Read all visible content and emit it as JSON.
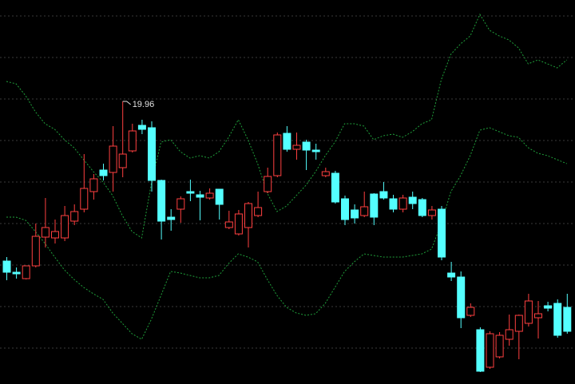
{
  "chart_data": {
    "type": "candlestick",
    "up_color": "#ff4040",
    "down_color": "#54ffff",
    "ylim": [
      16.42,
      21.23
    ],
    "open": [
      17.96,
      17.82,
      17.74,
      17.9,
      18.26,
      18.25,
      18.25,
      18.46,
      18.61,
      18.83,
      19.1,
      19.07,
      19.13,
      19.34,
      19.66,
      19.63,
      18.97,
      18.51,
      18.61,
      18.83,
      18.79,
      18.75,
      18.86,
      18.38,
      18.3,
      18.38,
      18.53,
      18.83,
      19.03,
      19.56,
      19.36,
      19.45,
      19.35,
      19.03,
      19.06,
      18.74,
      18.6,
      18.53,
      18.8,
      18.83,
      18.74,
      18.61,
      18.76,
      18.73,
      18.53,
      18.61,
      17.81,
      17.76,
      17.28,
      17.1,
      16.63,
      16.76,
      16.98,
      17.08,
      17.18,
      17.25,
      17.4,
      17.43,
      17.38
    ],
    "high": [
      18.01,
      17.88,
      17.9,
      18.43,
      18.75,
      18.48,
      18.65,
      18.67,
      19.3,
      19.05,
      19.18,
      19.65,
      19.96,
      19.68,
      19.73,
      19.71,
      18.98,
      18.61,
      18.77,
      18.98,
      18.84,
      18.87,
      18.86,
      18.59,
      18.6,
      18.7,
      18.83,
      19.13,
      19.57,
      19.65,
      19.57,
      19.48,
      19.43,
      19.13,
      19.09,
      18.78,
      18.67,
      18.83,
      18.81,
      18.95,
      18.79,
      18.79,
      18.83,
      18.75,
      18.65,
      18.65,
      17.95,
      17.83,
      17.43,
      17.13,
      17.08,
      17.07,
      17.29,
      17.29,
      17.55,
      17.46,
      17.45,
      17.48,
      17.55
    ],
    "low": [
      17.72,
      17.74,
      17.73,
      17.88,
      18.13,
      18.18,
      18.21,
      18.41,
      18.57,
      18.73,
      18.97,
      18.83,
      19.01,
      19.32,
      19.55,
      18.83,
      18.23,
      18.34,
      18.44,
      18.71,
      18.47,
      18.73,
      18.48,
      18.36,
      18.28,
      18.13,
      18.51,
      18.81,
      19.01,
      19.33,
      19.23,
      19.1,
      19.23,
      19.01,
      18.68,
      18.41,
      18.43,
      18.51,
      18.41,
      18.73,
      18.57,
      18.57,
      18.61,
      18.51,
      18.48,
      17.97,
      17.71,
      17.12,
      17.26,
      16.57,
      16.61,
      16.74,
      16.9,
      16.73,
      17.14,
      16.99,
      17.33,
      17.0,
      17.05
    ],
    "close": [
      17.82,
      17.8,
      17.9,
      18.27,
      18.38,
      18.33,
      18.53,
      18.58,
      18.87,
      18.99,
      19.03,
      19.4,
      19.3,
      19.59,
      19.61,
      18.97,
      18.46,
      18.48,
      18.74,
      18.81,
      18.76,
      18.81,
      18.67,
      18.45,
      18.55,
      18.68,
      18.63,
      19.02,
      19.54,
      19.36,
      19.41,
      19.35,
      19.33,
      19.08,
      18.7,
      18.48,
      18.5,
      18.64,
      18.51,
      18.75,
      18.61,
      18.75,
      18.68,
      18.53,
      18.6,
      18.01,
      17.76,
      17.25,
      17.38,
      16.58,
      17.05,
      17.03,
      17.1,
      17.28,
      17.46,
      17.3,
      17.37,
      17.03,
      17.08
    ],
    "lines": [
      {
        "color": "#1f9e3a",
        "values": [
          20.21,
          20.18,
          20.03,
          19.83,
          19.68,
          19.61,
          19.48,
          19.38,
          19.23,
          19.08,
          18.95,
          18.78,
          18.53,
          18.33,
          18.25,
          18.93,
          19.45,
          19.48,
          19.33,
          19.25,
          19.28,
          19.25,
          19.33,
          19.51,
          19.73,
          19.48,
          19.18,
          18.81,
          18.58,
          18.65,
          18.78,
          18.91,
          19.08,
          19.28,
          19.45,
          19.68,
          19.68,
          19.65,
          19.48,
          19.53,
          19.55,
          19.51,
          19.58,
          19.68,
          19.73,
          20.23,
          20.55,
          20.68,
          20.78,
          21.05,
          20.85,
          20.78,
          20.73,
          20.63,
          20.43,
          20.48,
          20.43,
          20.38,
          20.48
        ]
      },
      {
        "color": "#1f9e3a",
        "values": [
          18.51,
          18.51,
          18.47,
          18.33,
          18.18,
          18.01,
          17.85,
          17.73,
          17.63,
          17.55,
          17.48,
          17.31,
          17.18,
          17.05,
          16.98,
          17.23,
          17.53,
          17.83,
          17.81,
          17.78,
          17.75,
          17.75,
          17.78,
          17.93,
          18.05,
          18.01,
          17.95,
          17.73,
          17.53,
          17.38,
          17.31,
          17.28,
          17.3,
          17.43,
          17.63,
          17.83,
          17.95,
          18.05,
          18.03,
          18.01,
          18.01,
          18.01,
          18.03,
          18.05,
          18.11,
          18.43,
          18.83,
          19.03,
          19.28,
          19.6,
          19.63,
          19.58,
          19.53,
          19.51,
          19.38,
          19.31,
          19.28,
          19.23,
          19.18
        ]
      }
    ]
  }
}
